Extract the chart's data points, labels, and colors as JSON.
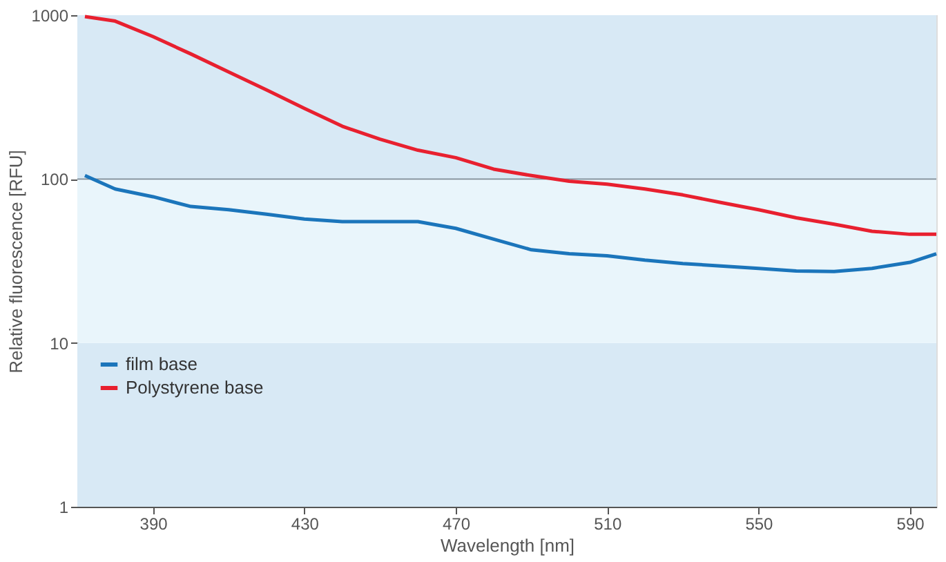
{
  "chart_data": {
    "type": "line",
    "xlabel": "Wavelength [nm]",
    "ylabel": "Relative fluorescence [RFU]",
    "log": "y",
    "xlim": [
      370,
      597
    ],
    "xticks": [
      390,
      430,
      470,
      510,
      550,
      590
    ],
    "ylim": [
      1,
      1000
    ],
    "yticks": [
      1,
      10,
      100,
      1000
    ],
    "grid": false,
    "legend": "bottom left",
    "marker": "none",
    "line_style": "solid",
    "bands": [
      {
        "axis": "y",
        "from": 1,
        "to": 10,
        "color": "#d8e9f5"
      },
      {
        "axis": "y",
        "from": 10,
        "to": 100,
        "color": "#e9f5fb"
      },
      {
        "axis": "y",
        "from": 100,
        "to": 1000,
        "color": "#d8e9f5"
      }
    ],
    "ref_lines": [
      {
        "axis": "y",
        "value": 100,
        "color": "#7f8c96"
      }
    ],
    "series": [
      {
        "name": "film base",
        "color": "#1b75bb",
        "x": [
          372,
          380,
          390,
          400,
          410,
          420,
          430,
          440,
          450,
          460,
          470,
          480,
          490,
          500,
          510,
          520,
          530,
          540,
          550,
          560,
          570,
          580,
          590,
          597
        ],
        "values": [
          105,
          87,
          78,
          68,
          65,
          61,
          57,
          55,
          55,
          55,
          50,
          43,
          37,
          35,
          34,
          32,
          30.5,
          29.5,
          28.5,
          27.5,
          27.3,
          28.5,
          31,
          35
        ]
      },
      {
        "name": "Polystyrene base",
        "color": "#e8202f",
        "x": [
          372,
          380,
          390,
          400,
          410,
          420,
          430,
          440,
          450,
          460,
          470,
          480,
          490,
          500,
          510,
          520,
          530,
          540,
          550,
          560,
          570,
          580,
          590,
          597
        ],
        "values": [
          980,
          920,
          740,
          580,
          450,
          350,
          270,
          210,
          175,
          150,
          135,
          115,
          105,
          97,
          93,
          87,
          80,
          72,
          65,
          58,
          53,
          48,
          46,
          46
        ]
      }
    ]
  }
}
